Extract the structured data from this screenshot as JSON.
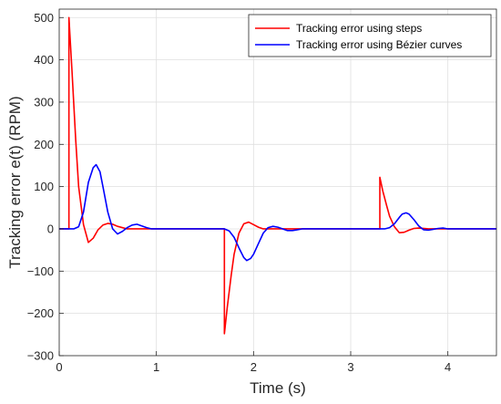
{
  "chart_data": {
    "type": "line",
    "xlabel": "Time (s)",
    "ylabel": "Tracking error e(t) (RPM)",
    "xlim": [
      0,
      4.5
    ],
    "ylim": [
      -300,
      520
    ],
    "xticks": [
      0,
      1,
      2,
      3,
      4
    ],
    "yticks": [
      -300,
      -200,
      -100,
      0,
      100,
      200,
      300,
      400,
      500
    ],
    "xtick_labels": [
      "0",
      "1",
      "2",
      "3",
      "4"
    ],
    "ytick_labels": [
      "−300",
      "−200",
      "−100",
      "0",
      "100",
      "200",
      "300",
      "400",
      "500"
    ],
    "grid": true,
    "legend_position": "top-right",
    "series": [
      {
        "name": "Tracking error using steps",
        "color": "#ff0000",
        "x": [
          0,
          0.1,
          0.1,
          0.13,
          0.17,
          0.2,
          0.25,
          0.3,
          0.35,
          0.4,
          0.45,
          0.5,
          0.55,
          0.6,
          0.7,
          0.8,
          1.0,
          1.7,
          1.7,
          1.73,
          1.77,
          1.8,
          1.85,
          1.9,
          1.95,
          2.0,
          2.05,
          2.1,
          2.2,
          2.3,
          2.5,
          3.3,
          3.3,
          3.33,
          3.37,
          3.4,
          3.45,
          3.5,
          3.55,
          3.6,
          3.65,
          3.7,
          3.8,
          3.9,
          4.5
        ],
        "y": [
          0,
          0,
          500,
          380,
          210,
          100,
          10,
          -32,
          -22,
          -2,
          9,
          13,
          11,
          6,
          0,
          0,
          0,
          0,
          -248,
          -185,
          -110,
          -60,
          -10,
          12,
          16,
          10,
          4,
          0,
          0,
          0,
          0,
          0,
          122,
          90,
          55,
          30,
          5,
          -9,
          -8,
          -3,
          1,
          2,
          0,
          0,
          0
        ]
      },
      {
        "name": "Tracking error using Bézier curves",
        "color": "#0000ff",
        "x": [
          0,
          0.1,
          0.15,
          0.2,
          0.25,
          0.3,
          0.35,
          0.38,
          0.42,
          0.45,
          0.5,
          0.55,
          0.6,
          0.65,
          0.7,
          0.75,
          0.8,
          0.85,
          0.9,
          0.95,
          1.0,
          1.7,
          1.75,
          1.8,
          1.85,
          1.9,
          1.93,
          1.97,
          2.0,
          2.05,
          2.1,
          2.15,
          2.2,
          2.25,
          2.3,
          2.35,
          2.4,
          2.45,
          2.5,
          2.6,
          3.3,
          3.35,
          3.4,
          3.45,
          3.5,
          3.53,
          3.57,
          3.6,
          3.65,
          3.7,
          3.75,
          3.8,
          3.85,
          3.9,
          3.95,
          4.0,
          4.5
        ],
        "y": [
          0,
          0,
          0,
          5,
          40,
          110,
          145,
          152,
          135,
          100,
          40,
          0,
          -12,
          -6,
          3,
          9,
          11,
          7,
          3,
          0,
          0,
          0,
          -5,
          -20,
          -45,
          -68,
          -75,
          -70,
          -60,
          -35,
          -10,
          3,
          6,
          4,
          0,
          -4,
          -4,
          -2,
          0,
          0,
          0,
          0,
          3,
          12,
          27,
          35,
          38,
          35,
          22,
          7,
          -2,
          -3,
          -1,
          1,
          2,
          0,
          0
        ]
      }
    ]
  }
}
